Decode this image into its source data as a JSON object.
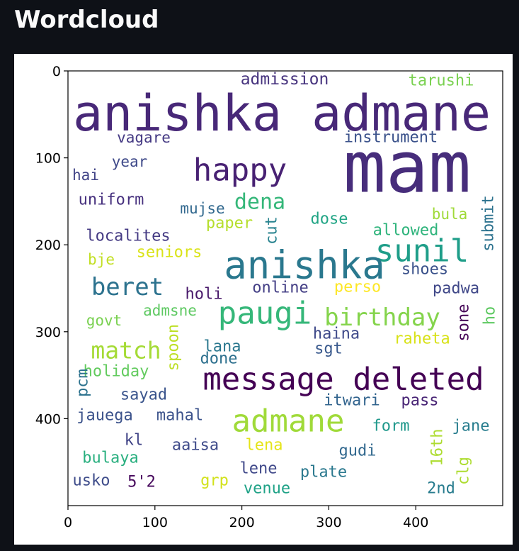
{
  "header": {
    "title": "Wordcloud"
  },
  "plot": {
    "xlim": [
      0,
      500
    ],
    "ylim": [
      500,
      0
    ],
    "xticks": [
      0,
      100,
      200,
      300,
      400
    ],
    "yticks": [
      0,
      100,
      200,
      300,
      400
    ],
    "words": [
      {
        "text": "admission",
        "color": "#46337e"
      },
      {
        "text": "tarushi",
        "color": "#7ad151"
      },
      {
        "text": "anishka admane",
        "color": "#482878"
      },
      {
        "text": "mam",
        "color": "#472d7b"
      },
      {
        "text": "vagare",
        "color": "#443983"
      },
      {
        "text": "instrument",
        "color": "#3b528b"
      },
      {
        "text": "year",
        "color": "#3e4989"
      },
      {
        "text": "happy",
        "color": "#482173"
      },
      {
        "text": "hai",
        "color": "#414487"
      },
      {
        "text": "dena",
        "color": "#35b779"
      },
      {
        "text": "submit",
        "color": "#2c728e"
      },
      {
        "text": "uniform",
        "color": "#46307e"
      },
      {
        "text": "mujse",
        "color": "#31688e"
      },
      {
        "text": "cut",
        "color": "#26828e"
      },
      {
        "text": "bula",
        "color": "#a0da39"
      },
      {
        "text": "dose",
        "color": "#21a585"
      },
      {
        "text": "paper",
        "color": "#b5de2b"
      },
      {
        "text": "allowed",
        "color": "#2fb47c"
      },
      {
        "text": "localites",
        "color": "#443a83"
      },
      {
        "text": "sunil",
        "color": "#1f9e89"
      },
      {
        "text": "anishka",
        "color": "#2a788e"
      },
      {
        "text": "bje",
        "color": "#c2df23"
      },
      {
        "text": "seniors",
        "color": "#dae319"
      },
      {
        "text": "shoes",
        "color": "#3b528b"
      },
      {
        "text": "beret",
        "color": "#2c728e"
      },
      {
        "text": "holi",
        "color": "#48186a"
      },
      {
        "text": "online",
        "color": "#433e85"
      },
      {
        "text": "perso",
        "color": "#fde725"
      },
      {
        "text": "padwa",
        "color": "#3f4788"
      },
      {
        "text": "paugi",
        "color": "#35b779"
      },
      {
        "text": "birthday",
        "color": "#84d44b"
      },
      {
        "text": "ho",
        "color": "#5ec962"
      },
      {
        "text": "sone",
        "color": "#450457"
      },
      {
        "text": "admsne",
        "color": "#5ec962"
      },
      {
        "text": "govt",
        "color": "#7ad151"
      },
      {
        "text": "haina",
        "color": "#3e4989"
      },
      {
        "text": "match",
        "color": "#a5db36"
      },
      {
        "text": "raheta",
        "color": "#d8e219"
      },
      {
        "text": "spoon",
        "color": "#bddf26"
      },
      {
        "text": "lana",
        "color": "#2a778e"
      },
      {
        "text": "sgt",
        "color": "#38588c"
      },
      {
        "text": "done",
        "color": "#2d708e"
      },
      {
        "text": "holiday",
        "color": "#63cb5f"
      },
      {
        "text": "message deleted",
        "color": "#440154"
      },
      {
        "text": "pcm",
        "color": "#2c728e"
      },
      {
        "text": "sayad",
        "color": "#3a548c"
      },
      {
        "text": "itwari",
        "color": "#32648e"
      },
      {
        "text": "pass",
        "color": "#482475"
      },
      {
        "text": "jauega",
        "color": "#3b528b"
      },
      {
        "text": "mahal",
        "color": "#3b528b"
      },
      {
        "text": "admane",
        "color": "#a0da39"
      },
      {
        "text": "form",
        "color": "#1f988b"
      },
      {
        "text": "jane",
        "color": "#287d8e"
      },
      {
        "text": "kl",
        "color": "#414487"
      },
      {
        "text": "16th",
        "color": "#addc30"
      },
      {
        "text": "aaisa",
        "color": "#3e4a89"
      },
      {
        "text": "lena",
        "color": "#e5e419"
      },
      {
        "text": "gudi",
        "color": "#31688e"
      },
      {
        "text": "bulaya",
        "color": "#29af7f"
      },
      {
        "text": "clg",
        "color": "#addc30"
      },
      {
        "text": "lene",
        "color": "#3f4889"
      },
      {
        "text": "plate",
        "color": "#2a788e"
      },
      {
        "text": "usko",
        "color": "#3e4c8a"
      },
      {
        "text": "5'2",
        "color": "#46085c"
      },
      {
        "text": "grp",
        "color": "#d2e21b"
      },
      {
        "text": "venue",
        "color": "#1fa287"
      },
      {
        "text": "2nd",
        "color": "#287c8e"
      }
    ]
  }
}
